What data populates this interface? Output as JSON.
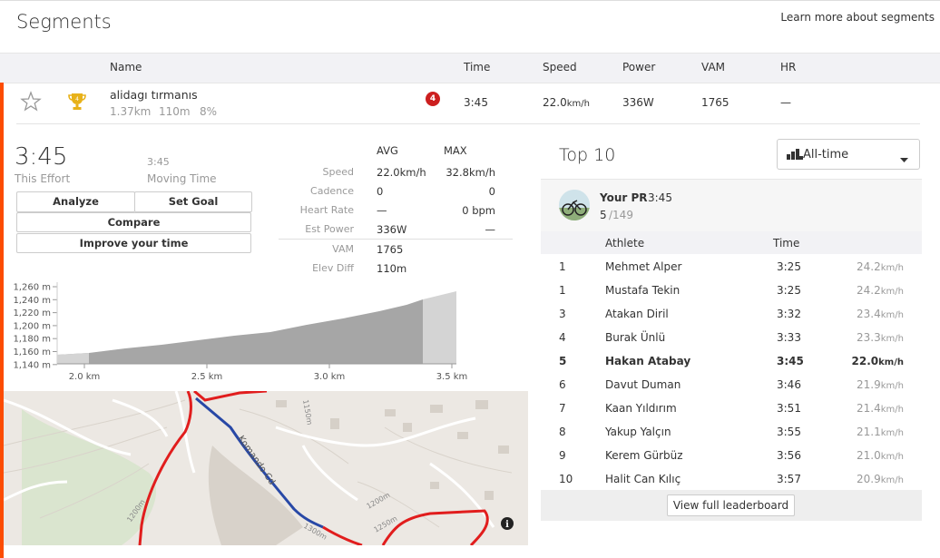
{
  "page": {
    "title": "Segments",
    "learn_more": "Learn more about segments"
  },
  "table": {
    "headers": {
      "name": "Name",
      "time": "Time",
      "speed": "Speed",
      "power": "Power",
      "vam": "VAM",
      "hr": "HR"
    },
    "segment": {
      "name": "alidagı tırmanıs",
      "distance": "1.37km",
      "elevation": "110m",
      "grade": "8%",
      "rank_badge": "4",
      "time": "3:45",
      "speed_value": "22.0",
      "speed_unit": "km/h",
      "power": "336W",
      "vam": "1765",
      "hr": "—"
    }
  },
  "effort": {
    "this_effort_time": "3:45",
    "this_effort_label": "This Effort",
    "moving_time": "3:45",
    "moving_time_label": "Moving Time",
    "buttons": {
      "analyze": "Analyze",
      "set_goal": "Set Goal",
      "compare": "Compare",
      "improve": "Improve your time"
    },
    "stats": {
      "avg_label": "AVG",
      "max_label": "MAX",
      "rows": [
        {
          "label": "Speed",
          "avg": "22.0km/h",
          "max": "32.8km/h"
        },
        {
          "label": "Cadence",
          "avg": "0",
          "max": "0"
        },
        {
          "label": "Heart Rate",
          "avg": "—",
          "max": "0 bpm"
        },
        {
          "label": "Est Power",
          "avg": "336W",
          "max": "—"
        }
      ],
      "vam_label": "VAM",
      "vam_value": "1765",
      "elev_label": "Elev Diff",
      "elev_value": "110m"
    }
  },
  "elevation_chart": {
    "y_ticks": [
      "1,260 m",
      "1,240 m",
      "1,220 m",
      "1,200 m",
      "1,180 m",
      "1,160 m",
      "1,140 m"
    ],
    "x_ticks": [
      "2.0 km",
      "2.5 km",
      "3.0 km",
      "3.5 km"
    ]
  },
  "map": {
    "street_label": "Komando Cd",
    "contour_labels": [
      "1150m",
      "1200m",
      "1250m",
      "1300m",
      "1200m"
    ],
    "info_icon": "info-icon"
  },
  "top10": {
    "title": "Top 10",
    "filter": "All-time",
    "pr": {
      "label": "Your PR",
      "time": "3:45",
      "rank": "5",
      "total": "/149"
    },
    "headers": {
      "athlete": "Athlete",
      "time": "Time"
    },
    "rows": [
      {
        "rank": "1",
        "athlete": "Mehmet Alper",
        "time": "3:25",
        "speed": "24.2",
        "unit": "km/h"
      },
      {
        "rank": "1",
        "athlete": "Mustafa Tekin",
        "time": "3:25",
        "speed": "24.2",
        "unit": "km/h"
      },
      {
        "rank": "3",
        "athlete": "Atakan Diril",
        "time": "3:32",
        "speed": "23.4",
        "unit": "km/h"
      },
      {
        "rank": "4",
        "athlete": "Burak Ünlü",
        "time": "3:33",
        "speed": "23.3",
        "unit": "km/h"
      },
      {
        "rank": "5",
        "athlete": "Hakan Atabay",
        "time": "3:45",
        "speed": "22.0",
        "unit": "km/h"
      },
      {
        "rank": "6",
        "athlete": "Davut Duman",
        "time": "3:46",
        "speed": "21.9",
        "unit": "km/h"
      },
      {
        "rank": "7",
        "athlete": "Kaan Yıldırım",
        "time": "3:51",
        "speed": "21.4",
        "unit": "km/h"
      },
      {
        "rank": "8",
        "athlete": "Yakup Yalçın",
        "time": "3:55",
        "speed": "21.1",
        "unit": "km/h"
      },
      {
        "rank": "9",
        "athlete": "Kerem Gürbüz",
        "time": "3:56",
        "speed": "21.0",
        "unit": "km/h"
      },
      {
        "rank": "10",
        "athlete": "Halit Can Kılıç",
        "time": "3:57",
        "speed": "20.9",
        "unit": "km/h"
      }
    ],
    "view_full": "View full leaderboard"
  },
  "colors": {
    "accent": "#fc4c02",
    "route_red": "#e11d1d",
    "route_blue": "#2848a6",
    "badge_red": "#cc1f1f",
    "trophy_gold": "#e8b21a"
  }
}
